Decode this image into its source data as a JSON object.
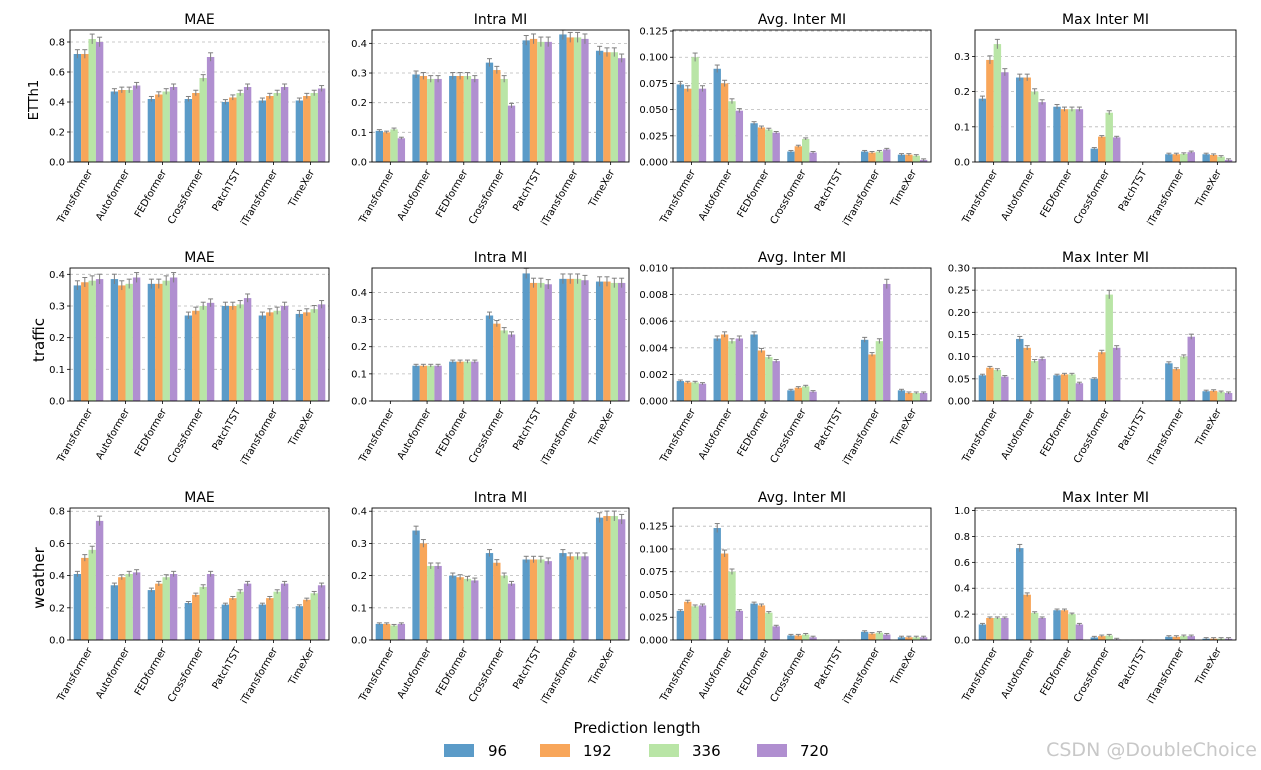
{
  "colors": {
    "96": "#5b9bc8",
    "192": "#f8a65a",
    "336": "#b9e5a6",
    "720": "#b08fd0"
  },
  "legend": {
    "title": "Prediction length",
    "items": [
      "96",
      "192",
      "336",
      "720"
    ]
  },
  "watermark": "CSDN @DoubleChoice",
  "chart_data": [
    {
      "type": "bar",
      "dataset": "ETTh1",
      "title": "MAE",
      "ylim": [
        0,
        0.88
      ],
      "yticks": [
        0.0,
        0.2,
        0.4,
        0.6,
        0.8
      ],
      "tick_labels": [
        "0.0",
        "0.2",
        "0.4",
        "0.6",
        "0.8"
      ],
      "categories": [
        "Transformer",
        "Autoformer",
        "FEDformer",
        "Crossformer",
        "PatchTST",
        "iTransformer",
        "TimeXer"
      ],
      "series": [
        {
          "name": "96",
          "values": [
            0.72,
            0.47,
            0.42,
            0.42,
            0.4,
            0.41,
            0.41
          ]
        },
        {
          "name": "192",
          "values": [
            0.72,
            0.48,
            0.45,
            0.46,
            0.43,
            0.44,
            0.44
          ]
        },
        {
          "name": "336",
          "values": [
            0.82,
            0.48,
            0.47,
            0.56,
            0.46,
            0.46,
            0.46
          ]
        },
        {
          "name": "720",
          "values": [
            0.8,
            0.51,
            0.5,
            0.7,
            0.5,
            0.5,
            0.49
          ]
        }
      ]
    },
    {
      "type": "bar",
      "dataset": "ETTh1",
      "title": "Intra MI",
      "ylim": [
        0,
        0.445
      ],
      "yticks": [
        0.0,
        0.1,
        0.2,
        0.3,
        0.4
      ],
      "tick_labels": [
        "0.0",
        "0.1",
        "0.2",
        "0.3",
        "0.4"
      ],
      "categories": [
        "Transformer",
        "Autoformer",
        "FEDformer",
        "Crossformer",
        "PatchTST",
        "iTransformer",
        "TimeXer"
      ],
      "series": [
        {
          "name": "96",
          "values": [
            0.105,
            0.295,
            0.29,
            0.335,
            0.41,
            0.43,
            0.375
          ]
        },
        {
          "name": "192",
          "values": [
            0.1,
            0.29,
            0.29,
            0.31,
            0.415,
            0.42,
            0.37
          ]
        },
        {
          "name": "336",
          "values": [
            0.11,
            0.28,
            0.29,
            0.28,
            0.405,
            0.42,
            0.37
          ]
        },
        {
          "name": "720",
          "values": [
            0.08,
            0.28,
            0.28,
            0.19,
            0.405,
            0.415,
            0.35
          ]
        }
      ]
    },
    {
      "type": "bar",
      "dataset": "ETTh1",
      "title": "Avg. Inter MI",
      "ylim": [
        0,
        0.126
      ],
      "yticks": [
        0.0,
        0.025,
        0.05,
        0.075,
        0.1,
        0.125
      ],
      "tick_labels": [
        "0.000",
        "0.025",
        "0.050",
        "0.075",
        "0.100",
        "0.125"
      ],
      "categories": [
        "Transformer",
        "Autoformer",
        "FEDformer",
        "Crossformer",
        "PatchTST",
        "iTransformer",
        "TimeXer"
      ],
      "series": [
        {
          "name": "96",
          "values": [
            0.074,
            0.089,
            0.037,
            0.01,
            0.0,
            0.01,
            0.007
          ]
        },
        {
          "name": "192",
          "values": [
            0.07,
            0.075,
            0.033,
            0.015,
            0.0,
            0.009,
            0.007
          ]
        },
        {
          "name": "336",
          "values": [
            0.1,
            0.058,
            0.031,
            0.022,
            0.0,
            0.01,
            0.006
          ]
        },
        {
          "name": "720",
          "values": [
            0.07,
            0.049,
            0.028,
            0.009,
            0.0,
            0.012,
            0.002
          ]
        }
      ]
    },
    {
      "type": "bar",
      "dataset": "ETTh1",
      "title": "Max Inter MI",
      "ylim": [
        0,
        0.375
      ],
      "yticks": [
        0.0,
        0.1,
        0.2,
        0.3
      ],
      "tick_labels": [
        "0.0",
        "0.1",
        "0.2",
        "0.3"
      ],
      "categories": [
        "Transformer",
        "Autoformer",
        "FEDformer",
        "Crossformer",
        "PatchTST",
        "iTransformer",
        "TimeXer"
      ],
      "series": [
        {
          "name": "96",
          "values": [
            0.18,
            0.24,
            0.157,
            0.038,
            0.0,
            0.022,
            0.022
          ]
        },
        {
          "name": "192",
          "values": [
            0.29,
            0.24,
            0.15,
            0.072,
            0.0,
            0.022,
            0.02
          ]
        },
        {
          "name": "336",
          "values": [
            0.335,
            0.2,
            0.15,
            0.14,
            0.0,
            0.023,
            0.015
          ]
        },
        {
          "name": "720",
          "values": [
            0.255,
            0.17,
            0.15,
            0.07,
            0.0,
            0.028,
            0.006
          ]
        }
      ]
    },
    {
      "type": "bar",
      "dataset": "traffic",
      "title": "MAE",
      "ylim": [
        0,
        0.42
      ],
      "yticks": [
        0.0,
        0.1,
        0.2,
        0.3,
        0.4
      ],
      "tick_labels": [
        "0.0",
        "0.1",
        "0.2",
        "0.3",
        "0.4"
      ],
      "categories": [
        "Transformer",
        "Autoformer",
        "FEDformer",
        "Crossformer",
        "PatchTST",
        "iTransformer",
        "TimeXer"
      ],
      "series": [
        {
          "name": "96",
          "values": [
            0.365,
            0.385,
            0.37,
            0.27,
            0.3,
            0.27,
            0.275
          ]
        },
        {
          "name": "192",
          "values": [
            0.375,
            0.365,
            0.37,
            0.285,
            0.3,
            0.28,
            0.28
          ]
        },
        {
          "name": "336",
          "values": [
            0.38,
            0.37,
            0.38,
            0.3,
            0.305,
            0.285,
            0.29
          ]
        },
        {
          "name": "720",
          "values": [
            0.385,
            0.39,
            0.39,
            0.31,
            0.325,
            0.3,
            0.305
          ]
        }
      ]
    },
    {
      "type": "bar",
      "dataset": "traffic",
      "title": "Intra MI",
      "ylim": [
        0,
        0.49
      ],
      "yticks": [
        0.0,
        0.1,
        0.2,
        0.3,
        0.4
      ],
      "tick_labels": [
        "0.0",
        "0.1",
        "0.2",
        "0.3",
        "0.4"
      ],
      "categories": [
        "Transformer",
        "Autoformer",
        "FEDformer",
        "Crossformer",
        "PatchTST",
        "iTransformer",
        "TimeXer"
      ],
      "series": [
        {
          "name": "96",
          "values": [
            0.0,
            0.13,
            0.145,
            0.315,
            0.47,
            0.45,
            0.44
          ]
        },
        {
          "name": "192",
          "values": [
            0.0,
            0.13,
            0.145,
            0.285,
            0.435,
            0.45,
            0.44
          ]
        },
        {
          "name": "336",
          "values": [
            0.0,
            0.13,
            0.145,
            0.26,
            0.435,
            0.45,
            0.435
          ]
        },
        {
          "name": "720",
          "values": [
            0.0,
            0.13,
            0.145,
            0.245,
            0.43,
            0.445,
            0.435
          ]
        }
      ]
    },
    {
      "type": "bar",
      "dataset": "traffic",
      "title": "Avg. Inter MI",
      "ylim": [
        0,
        0.01
      ],
      "yticks": [
        0.0,
        0.002,
        0.004,
        0.006,
        0.008,
        0.01
      ],
      "tick_labels": [
        "0.000",
        "0.002",
        "0.004",
        "0.006",
        "0.008",
        "0.010"
      ],
      "categories": [
        "Transformer",
        "Autoformer",
        "FEDformer",
        "Crossformer",
        "PatchTST",
        "iTransformer",
        "TimeXer"
      ],
      "series": [
        {
          "name": "96",
          "values": [
            0.0015,
            0.0047,
            0.005,
            0.0008,
            0.0,
            0.0046,
            0.0008
          ]
        },
        {
          "name": "192",
          "values": [
            0.0014,
            0.005,
            0.0038,
            0.001,
            0.0,
            0.0035,
            0.0006
          ]
        },
        {
          "name": "336",
          "values": [
            0.0014,
            0.0045,
            0.0033,
            0.0011,
            0.0,
            0.0045,
            0.0006
          ]
        },
        {
          "name": "720",
          "values": [
            0.0013,
            0.0047,
            0.003,
            0.0007,
            0.0,
            0.0088,
            0.0006
          ]
        }
      ]
    },
    {
      "type": "bar",
      "dataset": "traffic",
      "title": "Max Inter MI",
      "ylim": [
        0,
        0.3
      ],
      "yticks": [
        0.0,
        0.05,
        0.1,
        0.15,
        0.2,
        0.25,
        0.3
      ],
      "tick_labels": [
        "0.00",
        "0.05",
        "0.10",
        "0.15",
        "0.20",
        "0.25",
        "0.30"
      ],
      "categories": [
        "Transformer",
        "Autoformer",
        "FEDformer",
        "Crossformer",
        "PatchTST",
        "iTransformer",
        "TimeXer"
      ],
      "series": [
        {
          "name": "96",
          "values": [
            0.058,
            0.14,
            0.058,
            0.05,
            0.0,
            0.085,
            0.022
          ]
        },
        {
          "name": "192",
          "values": [
            0.075,
            0.12,
            0.06,
            0.11,
            0.0,
            0.072,
            0.023
          ]
        },
        {
          "name": "336",
          "values": [
            0.07,
            0.09,
            0.06,
            0.24,
            0.0,
            0.1,
            0.02
          ]
        },
        {
          "name": "720",
          "values": [
            0.055,
            0.095,
            0.04,
            0.12,
            0.0,
            0.145,
            0.018
          ]
        }
      ]
    },
    {
      "type": "bar",
      "dataset": "weather",
      "title": "MAE",
      "ylim": [
        0,
        0.82
      ],
      "yticks": [
        0.0,
        0.2,
        0.4,
        0.6,
        0.8
      ],
      "tick_labels": [
        "0.0",
        "0.2",
        "0.4",
        "0.6",
        "0.8"
      ],
      "categories": [
        "Transformer",
        "Autoformer",
        "FEDformer",
        "Crossformer",
        "PatchTST",
        "iTransformer",
        "TimeXer"
      ],
      "series": [
        {
          "name": "96",
          "values": [
            0.41,
            0.34,
            0.31,
            0.23,
            0.22,
            0.22,
            0.21
          ]
        },
        {
          "name": "192",
          "values": [
            0.51,
            0.39,
            0.35,
            0.28,
            0.26,
            0.26,
            0.25
          ]
        },
        {
          "name": "336",
          "values": [
            0.56,
            0.41,
            0.39,
            0.33,
            0.3,
            0.3,
            0.29
          ]
        },
        {
          "name": "720",
          "values": [
            0.74,
            0.42,
            0.41,
            0.41,
            0.35,
            0.35,
            0.34
          ]
        }
      ]
    },
    {
      "type": "bar",
      "dataset": "weather",
      "title": "Intra MI",
      "ylim": [
        0,
        0.41
      ],
      "yticks": [
        0.0,
        0.1,
        0.2,
        0.3,
        0.4
      ],
      "tick_labels": [
        "0.0",
        "0.1",
        "0.2",
        "0.3",
        "0.4"
      ],
      "categories": [
        "Transformer",
        "Autoformer",
        "FEDformer",
        "Crossformer",
        "PatchTST",
        "iTransformer",
        "TimeXer"
      ],
      "series": [
        {
          "name": "96",
          "values": [
            0.05,
            0.34,
            0.2,
            0.27,
            0.25,
            0.27,
            0.38
          ]
        },
        {
          "name": "192",
          "values": [
            0.05,
            0.3,
            0.195,
            0.24,
            0.25,
            0.26,
            0.385
          ]
        },
        {
          "name": "336",
          "values": [
            0.045,
            0.23,
            0.19,
            0.2,
            0.25,
            0.26,
            0.385
          ]
        },
        {
          "name": "720",
          "values": [
            0.05,
            0.23,
            0.185,
            0.175,
            0.245,
            0.26,
            0.375
          ]
        }
      ]
    },
    {
      "type": "bar",
      "dataset": "weather",
      "title": "Avg. Inter MI",
      "ylim": [
        0,
        0.145
      ],
      "yticks": [
        0.0,
        0.025,
        0.05,
        0.075,
        0.1,
        0.125
      ],
      "tick_labels": [
        "0.000",
        "0.025",
        "0.050",
        "0.075",
        "0.100",
        "0.125"
      ],
      "categories": [
        "Transformer",
        "Autoformer",
        "FEDformer",
        "Crossformer",
        "PatchTST",
        "iTransformer",
        "TimeXer"
      ],
      "series": [
        {
          "name": "96",
          "values": [
            0.032,
            0.123,
            0.04,
            0.005,
            0.0,
            0.009,
            0.003
          ]
        },
        {
          "name": "192",
          "values": [
            0.042,
            0.095,
            0.038,
            0.005,
            0.0,
            0.007,
            0.003
          ]
        },
        {
          "name": "336",
          "values": [
            0.037,
            0.075,
            0.03,
            0.006,
            0.0,
            0.008,
            0.003
          ]
        },
        {
          "name": "720",
          "values": [
            0.038,
            0.032,
            0.015,
            0.003,
            0.0,
            0.006,
            0.003
          ]
        }
      ]
    },
    {
      "type": "bar",
      "dataset": "weather",
      "title": "Max Inter MI",
      "ylim": [
        0,
        1.02
      ],
      "yticks": [
        0.0,
        0.2,
        0.4,
        0.6,
        0.8,
        1.0
      ],
      "tick_labels": [
        "0.0",
        "0.2",
        "0.4",
        "0.6",
        "0.8",
        "1.0"
      ],
      "categories": [
        "Transformer",
        "Autoformer",
        "FEDformer",
        "Crossformer",
        "PatchTST",
        "iTransformer",
        "TimeXer"
      ],
      "series": [
        {
          "name": "96",
          "values": [
            0.12,
            0.71,
            0.23,
            0.02,
            0.0,
            0.025,
            0.01
          ]
        },
        {
          "name": "192",
          "values": [
            0.17,
            0.35,
            0.23,
            0.03,
            0.0,
            0.025,
            0.01
          ]
        },
        {
          "name": "336",
          "values": [
            0.17,
            0.21,
            0.2,
            0.035,
            0.0,
            0.03,
            0.01
          ]
        },
        {
          "name": "720",
          "values": [
            0.17,
            0.17,
            0.12,
            0.005,
            0.0,
            0.03,
            0.01
          ]
        }
      ]
    }
  ]
}
